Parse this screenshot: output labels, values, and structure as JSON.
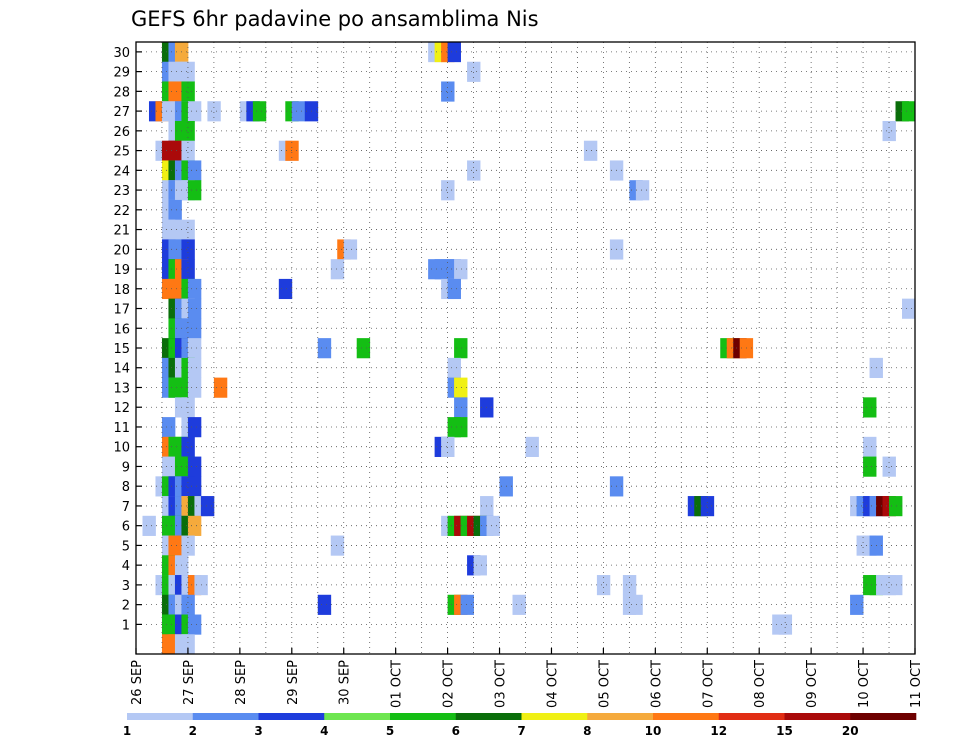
{
  "chart_data": {
    "type": "heatmap",
    "title": "GEFS 6hr padavine po ansamblima Nis",
    "xlabel": "",
    "ylabel": "",
    "x_tick_labels": [
      "26 SEP",
      "27 SEP",
      "28 SEP",
      "29 SEP",
      "30 SEP",
      "01 OCT",
      "02 OCT",
      "03 OCT",
      "04 OCT",
      "05 OCT",
      "06 OCT",
      "07 OCT",
      "08 OCT",
      "09 OCT",
      "10 OCT",
      "11 OCT"
    ],
    "y_tick_labels": [
      "1",
      "2",
      "3",
      "4",
      "5",
      "6",
      "7",
      "8",
      "9",
      "10",
      "11",
      "12",
      "13",
      "14",
      "15",
      "16",
      "17",
      "18",
      "19",
      "20",
      "21",
      "22",
      "23",
      "24",
      "25",
      "26",
      "27",
      "28",
      "29",
      "30"
    ],
    "time_steps_per_day": 4,
    "x_range_days": [
      0,
      15
    ],
    "y_range": [
      0.5,
      30.5
    ],
    "grid": true,
    "legend_position": "bottom",
    "legend_labels": [
      "1",
      "2",
      "3",
      "4",
      "5",
      "6",
      "7",
      "8",
      "10",
      "12",
      "15",
      "20"
    ],
    "legend_colors": [
      "#b4c8f4",
      "#5a8cf0",
      "#1e3cdc",
      "#6ee650",
      "#14be14",
      "#0a6e0a",
      "#f0f014",
      "#f5aa3c",
      "#ff7814",
      "#e12d14",
      "#aa0a0a",
      "#6e0000"
    ],
    "cells": [
      {
        "member": 30,
        "cells": [
          [
            0.5,
            6
          ],
          [
            0.625,
            2
          ],
          [
            0.75,
            8
          ],
          [
            5.625,
            1
          ],
          [
            5.75,
            7
          ],
          [
            5.875,
            10
          ],
          [
            6.0,
            3
          ]
        ]
      },
      {
        "member": 29,
        "cells": [
          [
            0.5,
            2
          ],
          [
            0.625,
            1
          ],
          [
            0.75,
            1
          ],
          [
            0.875,
            1
          ],
          [
            6.375,
            1
          ]
        ]
      },
      {
        "member": 28,
        "cells": [
          [
            0.5,
            5
          ],
          [
            0.625,
            10
          ],
          [
            0.75,
            10
          ],
          [
            0.875,
            5
          ],
          [
            5.875,
            2
          ]
        ]
      },
      {
        "member": 27,
        "cells": [
          [
            0.25,
            3
          ],
          [
            0.375,
            10
          ],
          [
            0.5,
            1
          ],
          [
            0.75,
            2
          ],
          [
            0.875,
            5
          ],
          [
            1.0,
            1
          ],
          [
            1.375,
            1
          ],
          [
            2.0,
            1
          ],
          [
            2.125,
            3
          ],
          [
            2.25,
            5
          ],
          [
            2.875,
            5
          ],
          [
            3.0,
            2
          ],
          [
            3.25,
            3
          ],
          [
            14.625,
            6
          ],
          [
            14.75,
            5
          ]
        ]
      },
      {
        "member": 26,
        "cells": [
          [
            0.625,
            1
          ],
          [
            0.75,
            5
          ],
          [
            0.875,
            5
          ],
          [
            14.375,
            1
          ]
        ]
      },
      {
        "member": 25,
        "cells": [
          [
            0.375,
            1
          ],
          [
            0.5,
            15
          ],
          [
            0.625,
            15
          ],
          [
            0.875,
            1
          ],
          [
            2.75,
            1
          ],
          [
            2.875,
            10
          ],
          [
            8.625,
            1
          ]
        ]
      },
      {
        "member": 24,
        "cells": [
          [
            0.5,
            7
          ],
          [
            0.625,
            6
          ],
          [
            0.75,
            2
          ],
          [
            0.875,
            5
          ],
          [
            1.0,
            2
          ],
          [
            6.375,
            1
          ],
          [
            9.125,
            1
          ]
        ]
      },
      {
        "member": 23,
        "cells": [
          [
            0.5,
            1
          ],
          [
            0.625,
            2
          ],
          [
            0.75,
            1
          ],
          [
            0.875,
            1
          ],
          [
            1.0,
            5
          ],
          [
            5.875,
            1
          ],
          [
            9.5,
            2
          ],
          [
            9.625,
            1
          ]
        ]
      },
      {
        "member": 22,
        "cells": [
          [
            0.5,
            1
          ],
          [
            0.625,
            2
          ]
        ]
      },
      {
        "member": 21,
        "cells": [
          [
            0.5,
            1
          ],
          [
            0.625,
            1
          ],
          [
            0.875,
            1
          ]
        ]
      },
      {
        "member": 20,
        "cells": [
          [
            0.5,
            3
          ],
          [
            0.625,
            2
          ],
          [
            0.75,
            2
          ],
          [
            0.875,
            3
          ],
          [
            3.875,
            10
          ],
          [
            4.0,
            1
          ],
          [
            9.125,
            1
          ]
        ]
      },
      {
        "member": 19,
        "cells": [
          [
            0.5,
            3
          ],
          [
            0.625,
            5
          ],
          [
            0.75,
            10
          ],
          [
            0.875,
            3
          ],
          [
            3.75,
            1
          ],
          [
            5.625,
            2
          ],
          [
            5.75,
            2
          ],
          [
            5.875,
            2
          ],
          [
            6.0,
            2
          ],
          [
            6.125,
            1
          ]
        ]
      },
      {
        "member": 18,
        "cells": [
          [
            0.5,
            10
          ],
          [
            0.625,
            10
          ],
          [
            0.875,
            5
          ],
          [
            1.0,
            2
          ],
          [
            2.75,
            3
          ],
          [
            5.875,
            1
          ],
          [
            6.0,
            2
          ]
        ]
      },
      {
        "member": 17,
        "cells": [
          [
            0.625,
            6
          ],
          [
            0.75,
            2
          ],
          [
            0.875,
            1
          ],
          [
            1.0,
            2
          ],
          [
            14.75,
            1
          ]
        ]
      },
      {
        "member": 16,
        "cells": [
          [
            0.625,
            5
          ],
          [
            0.75,
            2
          ],
          [
            0.875,
            2
          ],
          [
            1.0,
            2
          ]
        ]
      },
      {
        "member": 15,
        "cells": [
          [
            0.5,
            6
          ],
          [
            0.625,
            5
          ],
          [
            0.75,
            3
          ],
          [
            0.875,
            2
          ],
          [
            1.0,
            1
          ],
          [
            3.5,
            2
          ],
          [
            4.25,
            5
          ],
          [
            6.125,
            5
          ],
          [
            11.25,
            5
          ],
          [
            11.375,
            10
          ],
          [
            11.5,
            20
          ],
          [
            11.625,
            10
          ]
        ]
      },
      {
        "member": 14,
        "cells": [
          [
            0.5,
            2
          ],
          [
            0.625,
            6
          ],
          [
            0.75,
            1
          ],
          [
            0.875,
            5
          ],
          [
            1.0,
            1
          ],
          [
            6.0,
            1
          ],
          [
            14.125,
            1
          ]
        ]
      },
      {
        "member": 13,
        "cells": [
          [
            0.5,
            2
          ],
          [
            0.625,
            5
          ],
          [
            0.75,
            5
          ],
          [
            1.0,
            1
          ],
          [
            1.5,
            10
          ],
          [
            6.0,
            2
          ],
          [
            6.125,
            7
          ]
        ]
      },
      {
        "member": 12,
        "cells": [
          [
            0.75,
            1
          ],
          [
            0.875,
            1
          ],
          [
            6.125,
            2
          ],
          [
            6.625,
            3
          ],
          [
            14.0,
            5
          ]
        ]
      },
      {
        "member": 11,
        "cells": [
          [
            0.5,
            2
          ],
          [
            0.875,
            1
          ],
          [
            1.0,
            3
          ],
          [
            6.0,
            5
          ],
          [
            6.125,
            5
          ]
        ]
      },
      {
        "member": 10,
        "cells": [
          [
            0.5,
            10
          ],
          [
            0.625,
            5
          ],
          [
            0.75,
            5
          ],
          [
            0.875,
            3
          ],
          [
            5.75,
            3
          ],
          [
            5.875,
            1
          ],
          [
            7.5,
            1
          ],
          [
            14.0,
            1
          ]
        ]
      },
      {
        "member": 9,
        "cells": [
          [
            0.5,
            1
          ],
          [
            0.75,
            5
          ],
          [
            0.875,
            5
          ],
          [
            1.0,
            3
          ],
          [
            14.0,
            5
          ],
          [
            14.375,
            1
          ]
        ]
      },
      {
        "member": 8,
        "cells": [
          [
            0.375,
            1
          ],
          [
            0.5,
            5
          ],
          [
            0.625,
            3
          ],
          [
            0.75,
            2
          ],
          [
            0.875,
            3
          ],
          [
            1.0,
            3
          ],
          [
            7.0,
            2
          ],
          [
            9.125,
            2
          ]
        ]
      },
      {
        "member": 7,
        "cells": [
          [
            0.5,
            1
          ],
          [
            0.625,
            3
          ],
          [
            0.75,
            2
          ],
          [
            0.875,
            8
          ],
          [
            1.0,
            6
          ],
          [
            1.125,
            1
          ],
          [
            1.25,
            3
          ],
          [
            6.625,
            1
          ],
          [
            10.625,
            3
          ],
          [
            10.75,
            6
          ],
          [
            10.875,
            3
          ],
          [
            13.75,
            1
          ],
          [
            13.875,
            2
          ],
          [
            14.0,
            3
          ],
          [
            14.125,
            2
          ],
          [
            14.25,
            20
          ],
          [
            14.375,
            15
          ],
          [
            14.5,
            5
          ]
        ]
      },
      {
        "member": 6,
        "cells": [
          [
            0.125,
            1
          ],
          [
            0.5,
            5
          ],
          [
            0.625,
            5
          ],
          [
            0.75,
            2
          ],
          [
            0.875,
            6
          ],
          [
            1.0,
            8
          ],
          [
            5.875,
            1
          ],
          [
            6.0,
            5
          ],
          [
            6.125,
            15
          ],
          [
            6.25,
            5
          ],
          [
            6.375,
            15
          ],
          [
            6.5,
            6
          ],
          [
            6.625,
            2
          ],
          [
            6.75,
            1
          ]
        ]
      },
      {
        "member": 5,
        "cells": [
          [
            0.5,
            1
          ],
          [
            0.625,
            10
          ],
          [
            0.875,
            1
          ],
          [
            3.75,
            1
          ],
          [
            13.875,
            1
          ],
          [
            14.0,
            1
          ],
          [
            14.125,
            2
          ]
        ]
      },
      {
        "member": 4,
        "cells": [
          [
            0.5,
            5
          ],
          [
            0.625,
            10
          ],
          [
            0.75,
            1
          ],
          [
            6.375,
            3
          ],
          [
            6.5,
            1
          ]
        ]
      },
      {
        "member": 3,
        "cells": [
          [
            0.375,
            1
          ],
          [
            0.5,
            5
          ],
          [
            0.625,
            1
          ],
          [
            0.75,
            3
          ],
          [
            0.875,
            1
          ],
          [
            1.0,
            10
          ],
          [
            1.125,
            1
          ],
          [
            8.875,
            1
          ],
          [
            9.375,
            1
          ],
          [
            14.0,
            5
          ],
          [
            14.125,
            5
          ],
          [
            14.25,
            1
          ],
          [
            14.375,
            1
          ],
          [
            14.5,
            1
          ]
        ]
      },
      {
        "member": 2,
        "cells": [
          [
            0.5,
            6
          ],
          [
            0.625,
            2
          ],
          [
            0.75,
            1
          ],
          [
            0.875,
            2
          ],
          [
            3.5,
            3
          ],
          [
            6.0,
            5
          ],
          [
            6.125,
            10
          ],
          [
            6.25,
            2
          ],
          [
            7.25,
            1
          ],
          [
            9.375,
            1
          ],
          [
            9.5,
            1
          ],
          [
            13.75,
            2
          ]
        ]
      },
      {
        "member": 1,
        "cells": [
          [
            0.5,
            5
          ],
          [
            0.625,
            5
          ],
          [
            0.75,
            3
          ],
          [
            0.875,
            5
          ],
          [
            1.0,
            2
          ],
          [
            12.25,
            1
          ],
          [
            12.375,
            1
          ]
        ]
      },
      {
        "member": 0,
        "cells": [
          [
            0.5,
            10
          ],
          [
            0.625,
            10
          ],
          [
            0.75,
            1
          ],
          [
            0.875,
            1
          ]
        ]
      }
    ]
  }
}
